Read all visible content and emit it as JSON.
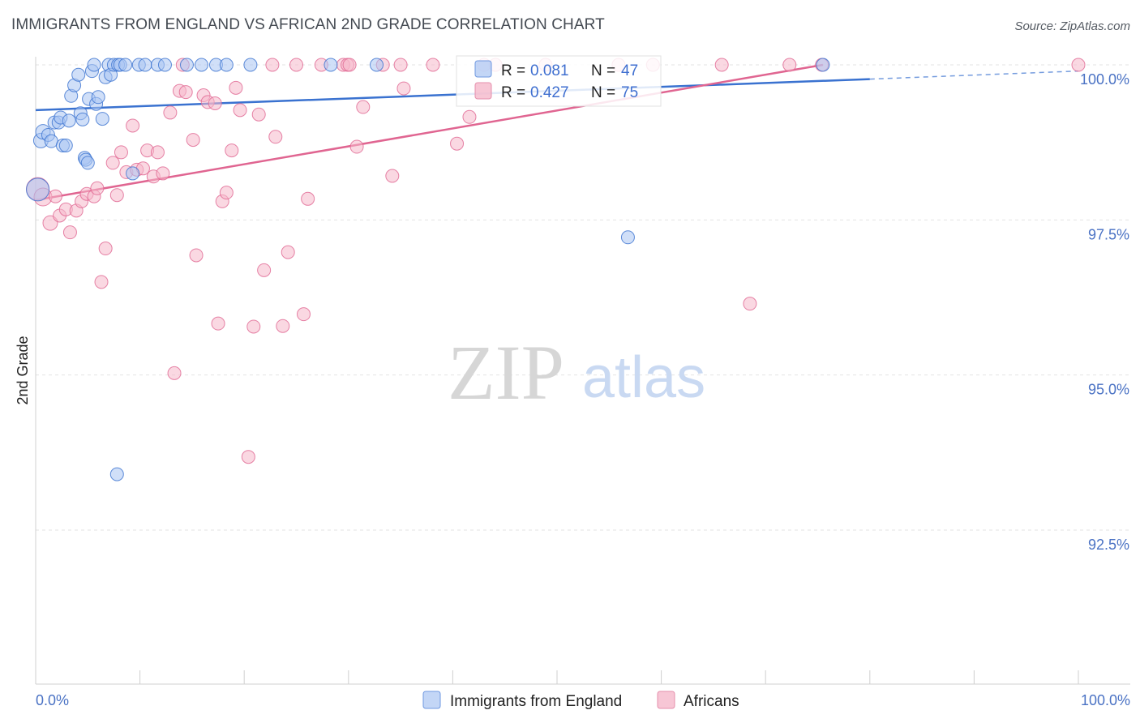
{
  "header": {
    "title": "IMMIGRANTS FROM ENGLAND VS AFRICAN 2ND GRADE CORRELATION CHART",
    "source": "Source: ZipAtlas.com"
  },
  "watermark": {
    "part1": "ZIP",
    "part2": "atlas"
  },
  "colors": {
    "blue": "#3a72d0",
    "blue_fill": "#aac4f2",
    "pink": "#e06591",
    "pink_fill": "#f5b8cb",
    "axis_label": "#4a72c4",
    "grid": "#e3e3e3"
  },
  "legend": {
    "rows": [
      {
        "r_label": "R =",
        "r_value": "0.081",
        "n_label": "N =",
        "n_value": "47"
      },
      {
        "r_label": "R =",
        "r_value": "0.427",
        "n_label": "N =",
        "n_value": "75"
      }
    ]
  },
  "chart_data": {
    "type": "scatter",
    "title": "IMMIGRANTS FROM ENGLAND VS AFRICAN 2ND GRADE CORRELATION CHART",
    "xlabel": "",
    "ylabel": "2nd Grade",
    "xlim": [
      0,
      100
    ],
    "ylim": [
      90.0,
      100.4
    ],
    "x_tick_labels": [
      "0.0%",
      "100.0%"
    ],
    "y_ticks": [
      92.5,
      95.0,
      97.5,
      100.0
    ],
    "y_tick_labels": [
      "92.5%",
      "95.0%",
      "97.5%",
      "100.0%"
    ],
    "grid": true,
    "series": [
      {
        "name": "Immigrants from England",
        "color": "blue",
        "r": 0.081,
        "n": 47,
        "trend": {
          "x0": 0,
          "y0": 99.27,
          "x1": 80,
          "y1": 99.77,
          "dash_to_x": 100,
          "dash_to_y": 99.9
        },
        "points": [
          {
            "x": 0.2,
            "y": 97.99,
            "s": 14
          },
          {
            "x": 0.5,
            "y": 98.78,
            "s": 9
          },
          {
            "x": 0.7,
            "y": 98.92,
            "s": 9
          },
          {
            "x": 1.2,
            "y": 98.87,
            "s": 8
          },
          {
            "x": 1.5,
            "y": 98.77,
            "s": 8
          },
          {
            "x": 1.8,
            "y": 99.07,
            "s": 8
          },
          {
            "x": 2.2,
            "y": 99.07,
            "s": 8
          },
          {
            "x": 2.4,
            "y": 99.15,
            "s": 8
          },
          {
            "x": 2.6,
            "y": 98.7,
            "s": 8
          },
          {
            "x": 2.9,
            "y": 98.7,
            "s": 8
          },
          {
            "x": 3.2,
            "y": 99.1,
            "s": 8
          },
          {
            "x": 3.4,
            "y": 99.5,
            "s": 8
          },
          {
            "x": 3.7,
            "y": 99.67,
            "s": 8
          },
          {
            "x": 4.1,
            "y": 99.84,
            "s": 8
          },
          {
            "x": 4.3,
            "y": 99.22,
            "s": 8
          },
          {
            "x": 4.5,
            "y": 99.12,
            "s": 8
          },
          {
            "x": 4.7,
            "y": 98.5,
            "s": 8
          },
          {
            "x": 4.8,
            "y": 98.47,
            "s": 8
          },
          {
            "x": 5.0,
            "y": 98.42,
            "s": 8
          },
          {
            "x": 5.1,
            "y": 99.45,
            "s": 8
          },
          {
            "x": 5.4,
            "y": 99.9,
            "s": 8
          },
          {
            "x": 5.6,
            "y": 100.0,
            "s": 8
          },
          {
            "x": 5.8,
            "y": 99.37,
            "s": 8
          },
          {
            "x": 6.0,
            "y": 99.48,
            "s": 8
          },
          {
            "x": 6.4,
            "y": 99.13,
            "s": 8
          },
          {
            "x": 6.7,
            "y": 99.8,
            "s": 8
          },
          {
            "x": 7.0,
            "y": 100.0,
            "s": 8
          },
          {
            "x": 7.2,
            "y": 99.84,
            "s": 8
          },
          {
            "x": 7.5,
            "y": 100.0,
            "s": 8
          },
          {
            "x": 7.9,
            "y": 100.0,
            "s": 8
          },
          {
            "x": 7.8,
            "y": 93.4,
            "s": 8
          },
          {
            "x": 8.1,
            "y": 100.0,
            "s": 8
          },
          {
            "x": 8.6,
            "y": 100.0,
            "s": 8
          },
          {
            "x": 9.3,
            "y": 98.25,
            "s": 8
          },
          {
            "x": 9.9,
            "y": 100.0,
            "s": 8
          },
          {
            "x": 10.5,
            "y": 100.0,
            "s": 8
          },
          {
            "x": 11.7,
            "y": 100.0,
            "s": 8
          },
          {
            "x": 12.4,
            "y": 100.0,
            "s": 8
          },
          {
            "x": 14.5,
            "y": 100.0,
            "s": 8
          },
          {
            "x": 15.9,
            "y": 100.0,
            "s": 8
          },
          {
            "x": 17.3,
            "y": 100.0,
            "s": 8
          },
          {
            "x": 18.3,
            "y": 100.0,
            "s": 8
          },
          {
            "x": 20.6,
            "y": 100.0,
            "s": 8
          },
          {
            "x": 28.3,
            "y": 100.0,
            "s": 8
          },
          {
            "x": 32.7,
            "y": 100.0,
            "s": 8
          },
          {
            "x": 56.8,
            "y": 97.22,
            "s": 8
          },
          {
            "x": 75.5,
            "y": 100.0,
            "s": 8
          }
        ]
      },
      {
        "name": "Africans",
        "color": "pink",
        "r": 0.427,
        "n": 75,
        "trend": {
          "x0": 0,
          "y0": 97.82,
          "x1": 75.5,
          "y1": 100.0
        },
        "points": [
          {
            "x": 0.2,
            "y": 98.0,
            "s": 14
          },
          {
            "x": 0.7,
            "y": 97.87,
            "s": 11
          },
          {
            "x": 1.4,
            "y": 97.45,
            "s": 9
          },
          {
            "x": 1.9,
            "y": 97.88,
            "s": 8
          },
          {
            "x": 2.3,
            "y": 97.57,
            "s": 8
          },
          {
            "x": 2.9,
            "y": 97.67,
            "s": 8
          },
          {
            "x": 3.3,
            "y": 97.3,
            "s": 8
          },
          {
            "x": 3.9,
            "y": 97.65,
            "s": 8
          },
          {
            "x": 4.4,
            "y": 97.8,
            "s": 8
          },
          {
            "x": 4.9,
            "y": 97.92,
            "s": 8
          },
          {
            "x": 5.6,
            "y": 97.88,
            "s": 8
          },
          {
            "x": 5.9,
            "y": 98.01,
            "s": 8
          },
          {
            "x": 6.3,
            "y": 96.5,
            "s": 8
          },
          {
            "x": 6.7,
            "y": 97.04,
            "s": 8
          },
          {
            "x": 7.4,
            "y": 98.42,
            "s": 8
          },
          {
            "x": 7.8,
            "y": 97.9,
            "s": 8
          },
          {
            "x": 8.2,
            "y": 98.59,
            "s": 8
          },
          {
            "x": 8.7,
            "y": 98.27,
            "s": 8
          },
          {
            "x": 9.3,
            "y": 99.02,
            "s": 8
          },
          {
            "x": 9.7,
            "y": 98.31,
            "s": 8
          },
          {
            "x": 10.3,
            "y": 98.33,
            "s": 8
          },
          {
            "x": 10.7,
            "y": 98.62,
            "s": 8
          },
          {
            "x": 11.3,
            "y": 98.2,
            "s": 8
          },
          {
            "x": 11.7,
            "y": 98.59,
            "s": 8
          },
          {
            "x": 12.2,
            "y": 98.25,
            "s": 8
          },
          {
            "x": 12.9,
            "y": 99.23,
            "s": 8
          },
          {
            "x": 13.3,
            "y": 95.03,
            "s": 8
          },
          {
            "x": 13.8,
            "y": 99.58,
            "s": 8
          },
          {
            "x": 14.1,
            "y": 100.0,
            "s": 8
          },
          {
            "x": 14.4,
            "y": 99.56,
            "s": 8
          },
          {
            "x": 15.1,
            "y": 98.79,
            "s": 8
          },
          {
            "x": 15.4,
            "y": 96.93,
            "s": 8
          },
          {
            "x": 16.1,
            "y": 99.51,
            "s": 8
          },
          {
            "x": 16.5,
            "y": 99.4,
            "s": 8
          },
          {
            "x": 17.2,
            "y": 99.38,
            "s": 8
          },
          {
            "x": 17.5,
            "y": 95.83,
            "s": 8
          },
          {
            "x": 17.9,
            "y": 97.8,
            "s": 8
          },
          {
            "x": 18.3,
            "y": 97.94,
            "s": 8
          },
          {
            "x": 18.8,
            "y": 98.62,
            "s": 8
          },
          {
            "x": 19.2,
            "y": 99.63,
            "s": 8
          },
          {
            "x": 19.6,
            "y": 99.27,
            "s": 8
          },
          {
            "x": 20.4,
            "y": 93.68,
            "s": 8
          },
          {
            "x": 20.9,
            "y": 95.78,
            "s": 8
          },
          {
            "x": 21.4,
            "y": 99.2,
            "s": 8
          },
          {
            "x": 21.9,
            "y": 96.69,
            "s": 8
          },
          {
            "x": 22.7,
            "y": 100.0,
            "s": 8
          },
          {
            "x": 23.0,
            "y": 98.84,
            "s": 8
          },
          {
            "x": 23.7,
            "y": 95.79,
            "s": 8
          },
          {
            "x": 24.2,
            "y": 96.98,
            "s": 8
          },
          {
            "x": 25.0,
            "y": 100.0,
            "s": 8
          },
          {
            "x": 25.7,
            "y": 95.98,
            "s": 8
          },
          {
            "x": 26.1,
            "y": 97.84,
            "s": 8
          },
          {
            "x": 27.4,
            "y": 100.0,
            "s": 8
          },
          {
            "x": 29.5,
            "y": 100.0,
            "s": 8
          },
          {
            "x": 29.9,
            "y": 100.0,
            "s": 8
          },
          {
            "x": 30.1,
            "y": 100.0,
            "s": 8
          },
          {
            "x": 30.8,
            "y": 98.68,
            "s": 8
          },
          {
            "x": 31.4,
            "y": 99.32,
            "s": 8
          },
          {
            "x": 33.3,
            "y": 100.0,
            "s": 8
          },
          {
            "x": 34.2,
            "y": 98.21,
            "s": 8
          },
          {
            "x": 35.0,
            "y": 100.0,
            "s": 8
          },
          {
            "x": 35.3,
            "y": 99.62,
            "s": 8
          },
          {
            "x": 38.1,
            "y": 100.0,
            "s": 8
          },
          {
            "x": 40.4,
            "y": 98.73,
            "s": 8
          },
          {
            "x": 41.6,
            "y": 99.16,
            "s": 8
          },
          {
            "x": 43.0,
            "y": 100.0,
            "s": 8
          },
          {
            "x": 44.1,
            "y": 100.0,
            "s": 8
          },
          {
            "x": 48.9,
            "y": 100.0,
            "s": 8
          },
          {
            "x": 55.9,
            "y": 100.0,
            "s": 8
          },
          {
            "x": 59.2,
            "y": 100.0,
            "s": 8
          },
          {
            "x": 65.8,
            "y": 100.0,
            "s": 8
          },
          {
            "x": 68.5,
            "y": 96.15,
            "s": 8
          },
          {
            "x": 72.3,
            "y": 100.0,
            "s": 8
          },
          {
            "x": 75.4,
            "y": 100.0,
            "s": 8
          },
          {
            "x": 100.0,
            "y": 100.0,
            "s": 8
          }
        ]
      }
    ]
  }
}
